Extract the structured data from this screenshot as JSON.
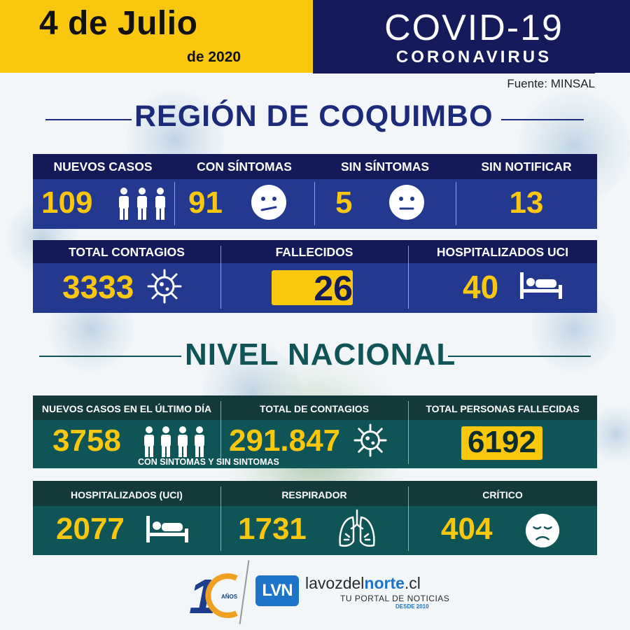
{
  "header": {
    "date": "4 de Julio",
    "year": "de 2020",
    "title": "COVID-19",
    "subtitle": "CORONAVIRUS",
    "source": "Fuente: MINSAL"
  },
  "colors": {
    "accent_yellow": "#f9c80e",
    "navy": "#141a5a",
    "regional_blue": "#23388f",
    "national_teal": "#0f5456"
  },
  "regional": {
    "title": "REGIÓN DE COQUIMBO",
    "row1": [
      {
        "label": "NUEVOS CASOS",
        "value": "109",
        "icon": "people-group-icon"
      },
      {
        "label": "CON SÍNTOMAS",
        "value": "91",
        "icon": "sick-face-icon"
      },
      {
        "label": "SIN SÍNTOMAS",
        "value": "5",
        "icon": "neutral-face-icon"
      },
      {
        "label": "SIN NOTIFICAR",
        "value": "13"
      }
    ],
    "row2": [
      {
        "label": "TOTAL CONTAGIOS",
        "value": "3333",
        "icon": "virus-icon"
      },
      {
        "label": "FALLECIDOS",
        "value": "26"
      },
      {
        "label": "HOSPITALIZADOS UCI",
        "value": "40",
        "icon": "hospital-bed-icon"
      }
    ]
  },
  "national": {
    "title": "NIVEL NACIONAL",
    "row1": [
      {
        "label": "NUEVOS CASOS EN EL ÚLTIMO DÍA",
        "value": "3758",
        "icon": "people-group-icon",
        "note": "CON SINTOMAS Y SIN SINTOMAS"
      },
      {
        "label": "TOTAL DE CONTAGIOS",
        "value": "291.847",
        "icon": "virus-icon"
      },
      {
        "label": "TOTAL PERSONAS FALLECIDAS",
        "value": "6192"
      }
    ],
    "row2": [
      {
        "label": "HOSPITALIZADOS (UCI)",
        "value": "2077",
        "icon": "hospital-bed-icon"
      },
      {
        "label": "RESPIRADOR",
        "value": "1731",
        "icon": "lungs-icon"
      },
      {
        "label": "CRÍTICO",
        "value": "404",
        "icon": "sad-face-icon"
      }
    ]
  },
  "footer": {
    "anniversary_number": "1",
    "anniversary_label": "AÑOS",
    "logo_letters": "LVN",
    "site_prefix": "lavozdel",
    "site_bold": "norte",
    "site_suffix": ".cl",
    "tagline": "TU PORTAL DE NOTICIAS",
    "since": "DESDE 2010"
  }
}
